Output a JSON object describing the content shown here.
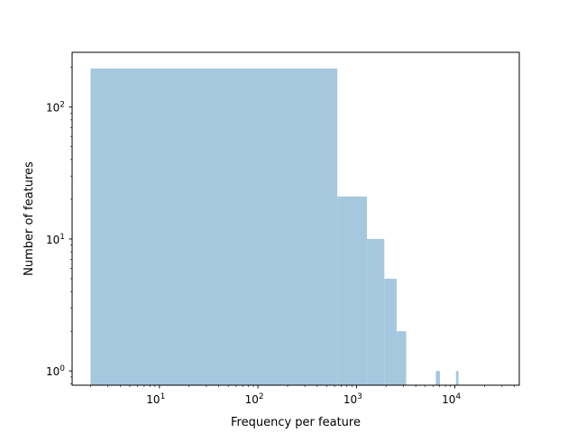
{
  "chart_data": {
    "type": "bar",
    "title": "",
    "xlabel": "Frequency per feature",
    "ylabel": "Number of features",
    "x_scale": "log",
    "y_scale": "log",
    "xlim": [
      1.3,
      45000
    ],
    "ylim": [
      0.78,
      260
    ],
    "x_ticks": [
      {
        "value": 10,
        "base": "10",
        "exp": "1"
      },
      {
        "value": 100,
        "base": "10",
        "exp": "2"
      },
      {
        "value": 1000,
        "base": "10",
        "exp": "3"
      },
      {
        "value": 10000,
        "base": "10",
        "exp": "4"
      }
    ],
    "y_ticks": [
      {
        "value": 1,
        "base": "10",
        "exp": "0"
      },
      {
        "value": 10,
        "base": "10",
        "exp": "1"
      },
      {
        "value": 100,
        "base": "10",
        "exp": "2"
      }
    ],
    "bin_edges": [
      2,
      640,
      1280,
      1920,
      2560,
      3200,
      3840,
      4480,
      5120,
      5760,
      6400,
      7040,
      7680,
      8320,
      8960,
      9600,
      10240,
      10880,
      11520
    ],
    "counts": [
      196,
      21,
      10,
      5,
      2,
      0,
      0,
      0,
      0,
      0,
      1,
      0,
      0,
      0,
      0,
      0,
      1,
      0
    ],
    "bar_color": "#a6c8df",
    "grid": false,
    "legend": "none"
  }
}
